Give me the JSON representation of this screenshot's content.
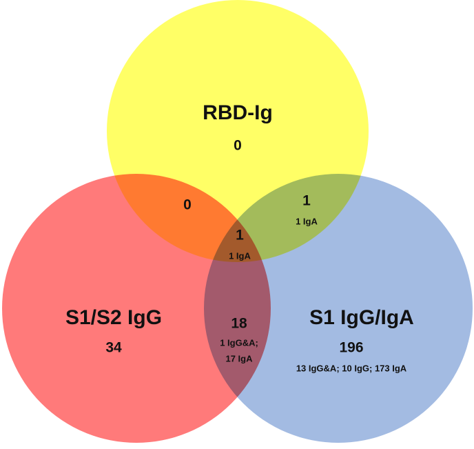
{
  "sets": [
    {
      "label": "RBD-Ig",
      "count": 0
    },
    {
      "label": "S1/S2 IgG",
      "count": 34
    },
    {
      "label": "S1 IgG/IgA",
      "count": 196,
      "detail": "13 IgG&A; 10 IgG; 173 IgA"
    }
  ],
  "overlaps": {
    "rbd_s1s2": {
      "count": 0
    },
    "rbd_s1": {
      "count": 1,
      "detail": "1 IgA"
    },
    "all": {
      "count": 1,
      "detail": "1 IgA"
    },
    "s1s2_s1": {
      "count": 18,
      "detail": [
        "1 IgG&A;",
        "17 IgA"
      ]
    }
  }
}
